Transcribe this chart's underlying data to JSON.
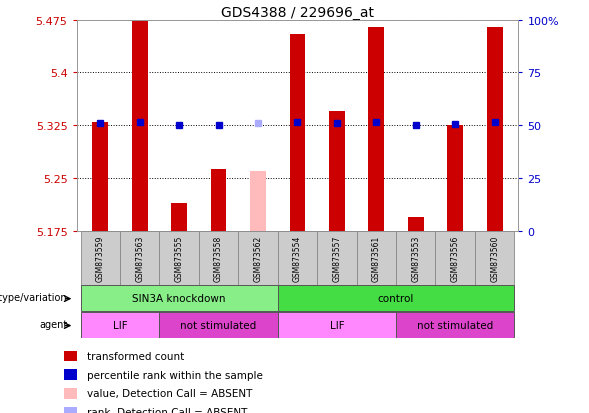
{
  "title": "GDS4388 / 229696_at",
  "samples": [
    "GSM873559",
    "GSM873563",
    "GSM873555",
    "GSM873558",
    "GSM873562",
    "GSM873554",
    "GSM873557",
    "GSM873561",
    "GSM873553",
    "GSM873556",
    "GSM873560"
  ],
  "bar_values": [
    5.33,
    5.475,
    5.215,
    5.263,
    5.26,
    5.455,
    5.345,
    5.465,
    5.195,
    5.325,
    5.465
  ],
  "bar_colors": [
    "#cc0000",
    "#cc0000",
    "#cc0000",
    "#cc0000",
    "#ffbbbb",
    "#cc0000",
    "#cc0000",
    "#cc0000",
    "#cc0000",
    "#cc0000",
    "#cc0000"
  ],
  "absent_flags": [
    false,
    false,
    false,
    false,
    true,
    false,
    false,
    false,
    false,
    false,
    false
  ],
  "percentile_values": [
    5.328,
    5.33,
    5.325,
    5.325,
    5.328,
    5.329,
    5.328,
    5.329,
    5.325,
    5.327,
    5.33
  ],
  "percentile_colors": [
    "#0000cc",
    "#0000cc",
    "#0000cc",
    "#0000cc",
    "#aaaaff",
    "#0000cc",
    "#0000cc",
    "#0000cc",
    "#0000cc",
    "#0000cc",
    "#0000cc"
  ],
  "ymin": 5.175,
  "ymax": 5.475,
  "yticks": [
    5.175,
    5.25,
    5.325,
    5.4,
    5.475
  ],
  "y2ticks_pct": [
    0,
    25,
    50,
    75,
    100
  ],
  "y2labels": [
    "0",
    "25",
    "50",
    "75",
    "100%"
  ],
  "genotype_groups": [
    {
      "label": "SIN3A knockdown",
      "start": 0,
      "end": 5,
      "color": "#88ee88"
    },
    {
      "label": "control",
      "start": 5,
      "end": 11,
      "color": "#44dd44"
    }
  ],
  "agent_groups": [
    {
      "label": "LIF",
      "start": 0,
      "end": 2,
      "color": "#ff88ff"
    },
    {
      "label": "not stimulated",
      "start": 2,
      "end": 5,
      "color": "#dd44cc"
    },
    {
      "label": "LIF",
      "start": 5,
      "end": 8,
      "color": "#ff88ff"
    },
    {
      "label": "not stimulated",
      "start": 8,
      "end": 11,
      "color": "#dd44cc"
    }
  ],
  "legend_items": [
    {
      "label": "transformed count",
      "color": "#cc0000"
    },
    {
      "label": "percentile rank within the sample",
      "color": "#0000cc"
    },
    {
      "label": "value, Detection Call = ABSENT",
      "color": "#ffbbbb"
    },
    {
      "label": "rank, Detection Call = ABSENT",
      "color": "#aaaaff"
    }
  ],
  "bar_width": 0.4,
  "tick_color_left": "#cc0000",
  "tick_color_right": "#0000cc",
  "sample_box_color": "#cccccc",
  "sample_box_edge": "#888888"
}
